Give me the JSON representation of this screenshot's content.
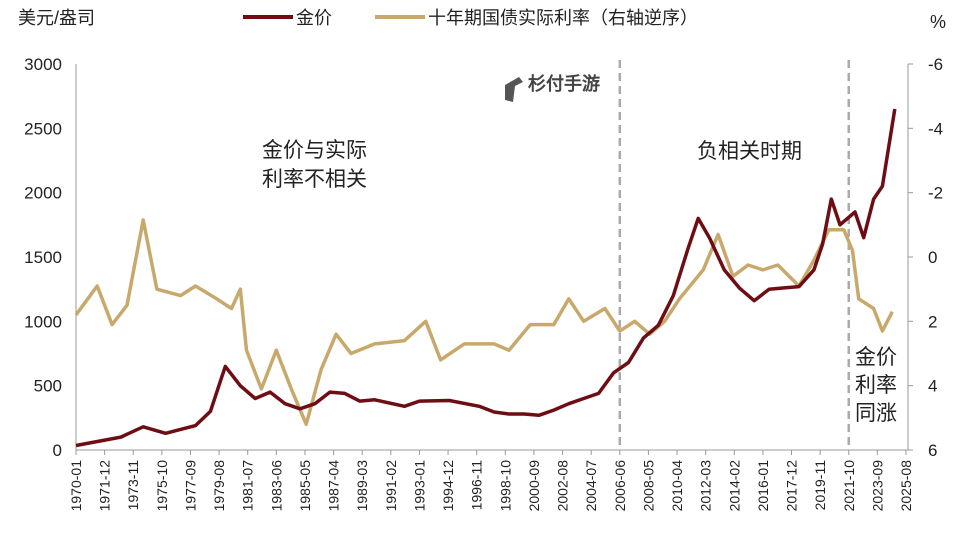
{
  "chart_data": {
    "type": "line",
    "left_axis_label": "美元/盎司",
    "right_axis_label": "%",
    "left_ylim": [
      0,
      3000
    ],
    "left_ticks": [
      "0",
      "500",
      "1000",
      "1500",
      "2000",
      "2500",
      "3000"
    ],
    "right_ylim": [
      6,
      -6
    ],
    "right_axis_inverted": true,
    "right_ticks": [
      "-6",
      "-4",
      "-2",
      "0",
      "2",
      "4",
      "6"
    ],
    "x_ticks": [
      "1970-01",
      "1971-12",
      "1973-11",
      "1975-10",
      "1977-09",
      "1979-08",
      "1981-07",
      "1983-06",
      "1985-05",
      "1987-04",
      "1989-03",
      "1991-02",
      "1993-01",
      "1994-12",
      "1996-11",
      "1998-10",
      "2000-09",
      "2002-08",
      "2004-07",
      "2006-06",
      "2008-05",
      "2010-04",
      "2012-03",
      "2014-02",
      "2016-01",
      "2017-12",
      "2019-11",
      "2021-10",
      "2023-09",
      "2025-08"
    ],
    "grid": false,
    "legend_position": "top",
    "series": [
      {
        "name": "金价",
        "axis": "left",
        "color": "#6e0d14",
        "x": [
          "1970-01",
          "1973-01",
          "1974-07",
          "1976-01",
          "1978-01",
          "1979-01",
          "1980-01",
          "1981-01",
          "1982-01",
          "1983-01",
          "1984-01",
          "1985-01",
          "1986-01",
          "1987-01",
          "1988-01",
          "1989-01",
          "1990-01",
          "1992-01",
          "1993-01",
          "1995-01",
          "1997-01",
          "1998-01",
          "1999-01",
          "2000-01",
          "2001-01",
          "2002-01",
          "2003-01",
          "2004-01",
          "2005-01",
          "2006-01",
          "2007-01",
          "2008-01",
          "2009-01",
          "2010-01",
          "2011-01",
          "2011-09",
          "2012-06",
          "2013-06",
          "2014-06",
          "2015-06",
          "2016-06",
          "2017-06",
          "2018-06",
          "2019-06",
          "2020-01",
          "2020-08",
          "2021-03",
          "2022-03",
          "2022-10",
          "2023-06",
          "2024-01",
          "2024-06",
          "2024-11"
        ],
        "values": [
          35,
          100,
          180,
          130,
          190,
          300,
          650,
          500,
          400,
          450,
          360,
          320,
          360,
          450,
          440,
          380,
          390,
          340,
          380,
          385,
          340,
          295,
          280,
          280,
          270,
          310,
          360,
          400,
          440,
          600,
          680,
          870,
          970,
          1200,
          1570,
          1800,
          1650,
          1400,
          1260,
          1160,
          1250,
          1260,
          1270,
          1400,
          1600,
          1950,
          1750,
          1850,
          1650,
          1950,
          2050,
          2350,
          2650
        ]
      },
      {
        "name": "十年期国债实际利率（右轴逆序）",
        "axis": "right",
        "color": "#c8a96b",
        "x": [
          "1970-01",
          "1971-06",
          "1972-06",
          "1973-06",
          "1974-07",
          "1975-06",
          "1977-01",
          "1978-01",
          "1979-06",
          "1980-06",
          "1981-01",
          "1981-06",
          "1982-06",
          "1983-06",
          "1984-06",
          "1985-06",
          "1986-06",
          "1987-06",
          "1988-06",
          "1990-01",
          "1992-01",
          "1993-06",
          "1994-06",
          "1996-01",
          "1998-01",
          "1999-01",
          "2000-06",
          "2002-01",
          "2003-01",
          "2004-01",
          "2005-06",
          "2006-06",
          "2007-06",
          "2008-06",
          "2009-06",
          "2010-06",
          "2012-01",
          "2013-01",
          "2014-01",
          "2015-01",
          "2016-01",
          "2017-01",
          "2018-06",
          "2019-06",
          "2020-06",
          "2021-06",
          "2022-01",
          "2022-06",
          "2023-06",
          "2024-01",
          "2024-09"
        ],
        "values": [
          1.8,
          0.9,
          2.1,
          1.5,
          -1.15,
          1.0,
          1.2,
          0.9,
          1.3,
          1.6,
          1.0,
          2.9,
          4.1,
          2.9,
          4.1,
          5.2,
          3.5,
          2.4,
          3.0,
          2.7,
          2.6,
          2.0,
          3.2,
          2.7,
          2.7,
          2.9,
          2.1,
          2.1,
          1.3,
          2.0,
          1.6,
          2.3,
          2.0,
          2.4,
          2.0,
          1.3,
          0.4,
          -0.7,
          0.6,
          0.25,
          0.4,
          0.25,
          0.9,
          0.1,
          -0.85,
          -0.85,
          -0.2,
          1.3,
          1.6,
          2.3,
          1.7
        ]
      }
    ],
    "vlines": [
      "2006-06",
      "2021-10"
    ],
    "annotations": [
      "金价与实际",
      "利率不相关",
      "负相关时期",
      "金价",
      "利率",
      "同涨"
    ]
  },
  "watermark": "杉付手游"
}
